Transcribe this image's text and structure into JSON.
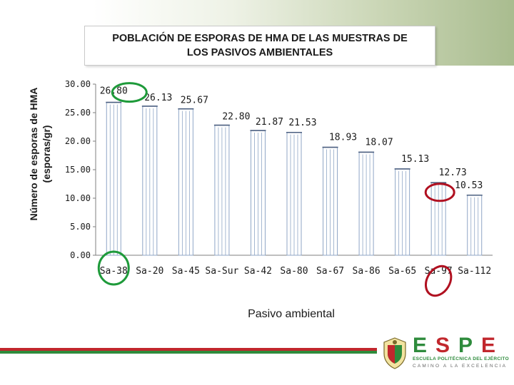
{
  "chart_data": {
    "type": "bar",
    "title": "POBLACIÓN DE ESPORAS DE HMA DE LAS MUESTRAS DE LOS PASIVOS AMBIENTALES",
    "xlabel": "Pasivo ambiental",
    "ylabel": "Número de esporas de HMA (esporas/gr)",
    "categories": [
      "Sa-38",
      "Sa-20",
      "Sa-45",
      "Sa-Sur",
      "Sa-42",
      "Sa-80",
      "Sa-67",
      "Sa-86",
      "Sa-65",
      "Sa-97",
      "Sa-112"
    ],
    "values": [
      26.8,
      26.13,
      25.67,
      22.8,
      21.87,
      21.53,
      18.93,
      18.07,
      15.13,
      12.73,
      10.53
    ],
    "value_labels": [
      "26.80",
      "26.13",
      "25.67",
      "22.80",
      "21.87",
      "21.53",
      "18.93",
      "18.07",
      "15.13",
      "12.73",
      "10.53"
    ],
    "yticks": [
      "0.00",
      "5.00",
      "10.00",
      "15.00",
      "20.00",
      "25.00",
      "30.00"
    ],
    "ylim": [
      0,
      30
    ],
    "grid": false,
    "highlight_green": [
      "Sa-38"
    ],
    "highlight_red": [
      "Sa-97"
    ],
    "colors": {
      "bar_stroke": "#8fa6c6",
      "bar_fill": "#ffffff",
      "green_circle": "#1e9a3a",
      "red_circle": "#b01020"
    }
  },
  "footer": {
    "logo_word": "ESPE",
    "logo_line1": "ESCUELA POLITÉCNICA DEL EJÉRCITO",
    "logo_line2": "CAMINO A LA EXCELENCIA",
    "colors": {
      "green": "#2e8b3c",
      "red": "#c1272d"
    }
  }
}
